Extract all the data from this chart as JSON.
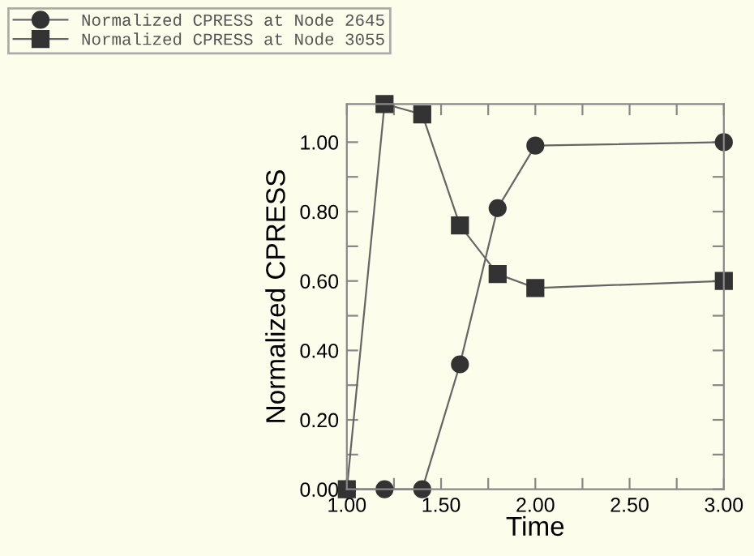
{
  "chart_data": {
    "type": "line",
    "xlabel": "Time",
    "ylabel": "Normalized CPRESS",
    "x": [
      1.0,
      1.2,
      1.4,
      1.6,
      1.8,
      2.0,
      3.0
    ],
    "series": [
      {
        "name": "Normalized CPRESS at Node 2645",
        "color": "#333333",
        "marker": "circle",
        "values": [
          0,
          0,
          0,
          0.36,
          0.81,
          0.99,
          1.0
        ]
      },
      {
        "name": "Normalized CPRESS at Node 3055",
        "color": "#333333",
        "marker": "square",
        "values": [
          0,
          1.11,
          1.08,
          0.76,
          0.62,
          0.58,
          0.6
        ]
      }
    ],
    "xlim": [
      1.0,
      3.0
    ],
    "ylim": [
      0,
      1.11
    ],
    "xticks": [
      {
        "value": 1.0,
        "label": "1.00"
      },
      {
        "value": 1.25,
        "label": null
      },
      {
        "value": 1.5,
        "label": "1.50"
      },
      {
        "value": 1.75,
        "label": null
      },
      {
        "value": 2.0,
        "label": "2.00"
      },
      {
        "value": 2.25,
        "label": null
      },
      {
        "value": 2.5,
        "label": "2.50"
      },
      {
        "value": 2.75,
        "label": null
      },
      {
        "value": 3.0,
        "label": "3.00"
      }
    ],
    "yticks": [
      {
        "value": 0,
        "label": "0.00"
      },
      {
        "value": 0.1,
        "label": null
      },
      {
        "value": 0.2,
        "label": "0.20"
      },
      {
        "value": 0.3,
        "label": null
      },
      {
        "value": 0.4,
        "label": "0.40"
      },
      {
        "value": 0.5,
        "label": null
      },
      {
        "value": 0.6,
        "label": "0.60"
      },
      {
        "value": 0.7,
        "label": null
      },
      {
        "value": 0.8,
        "label": "0.80"
      },
      {
        "value": 0.9,
        "label": null
      },
      {
        "value": 1.0,
        "label": "1.00"
      }
    ],
    "legend": "top left",
    "grid": false,
    "line_style": "solid"
  }
}
